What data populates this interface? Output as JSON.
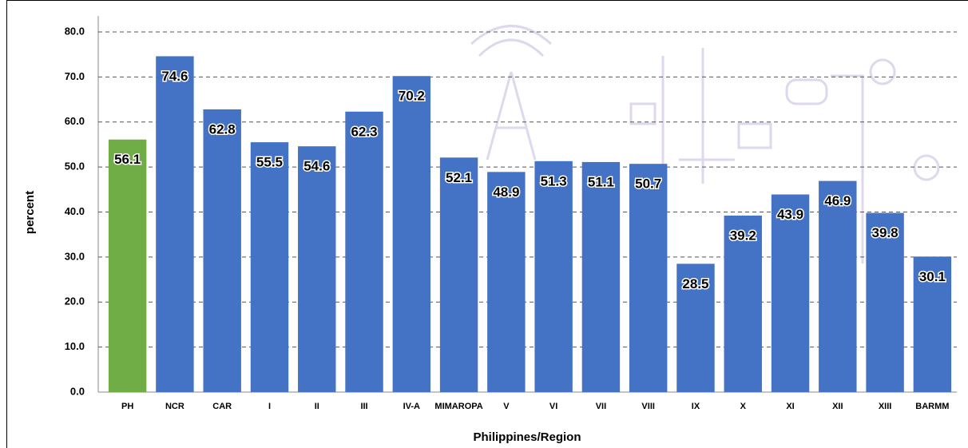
{
  "chart_data": {
    "type": "bar",
    "x_label": "Philippines/Region",
    "y_label": "percent",
    "categories": [
      "PH",
      "NCR",
      "CAR",
      "I",
      "II",
      "III",
      "IV-A",
      "MIMAROPA",
      "V",
      "VI",
      "VII",
      "VIII",
      "IX",
      "X",
      "XI",
      "XII",
      "XIII",
      "BARMM"
    ],
    "values": [
      56.1,
      74.6,
      62.8,
      55.5,
      54.6,
      62.3,
      70.2,
      52.1,
      48.9,
      51.3,
      51.1,
      50.7,
      28.5,
      39.2,
      43.9,
      46.9,
      39.8,
      30.1
    ],
    "colors": [
      "#70ad47",
      "#4472c4",
      "#4472c4",
      "#4472c4",
      "#4472c4",
      "#4472c4",
      "#4472c4",
      "#4472c4",
      "#4472c4",
      "#4472c4",
      "#4472c4",
      "#4472c4",
      "#4472c4",
      "#4472c4",
      "#4472c4",
      "#4472c4",
      "#4472c4",
      "#4472c4"
    ],
    "ylim": [
      0,
      80
    ],
    "yticks": [
      {
        "value": 0,
        "label": "0.0"
      },
      {
        "value": 10,
        "label": "10.0"
      },
      {
        "value": 20,
        "label": "20.0"
      },
      {
        "value": 30,
        "label": "30.0"
      },
      {
        "value": 40,
        "label": "40.0"
      },
      {
        "value": 50,
        "label": "50.0"
      },
      {
        "value": 60,
        "label": "60.0"
      },
      {
        "value": 70,
        "label": "70.0"
      },
      {
        "value": 80,
        "label": "80.0"
      }
    ],
    "grid": true
  }
}
